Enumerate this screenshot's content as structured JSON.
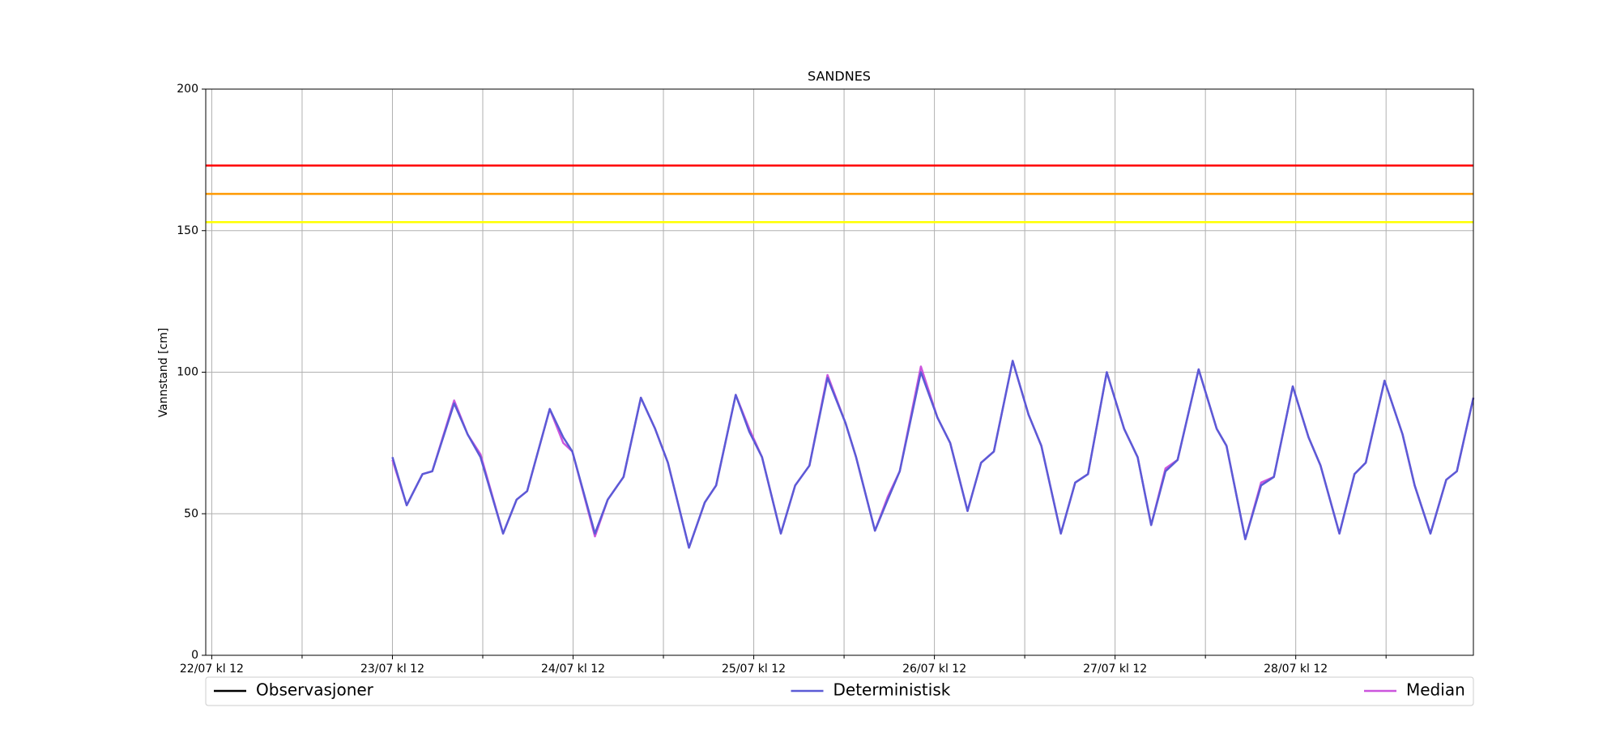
{
  "chart_data": {
    "type": "line",
    "title": "SANDNES",
    "y_label": "Vannstand [cm]",
    "x": [
      24,
      25.9,
      28,
      29.3,
      32.2,
      34,
      35.7,
      38.7,
      40.5,
      41.9,
      44.9,
      46.7,
      47.9,
      50.9,
      52.6,
      54.7,
      57,
      58.9,
      60.6,
      63.4,
      65.5,
      67,
      69.6,
      71.4,
      73.1,
      75.6,
      77.5,
      79.4,
      81.8,
      84.2,
      85.6,
      88.1,
      89.8,
      91.4,
      94.2,
      96.4,
      98.1,
      100.4,
      102.2,
      103.9,
      106.4,
      108.5,
      110.2,
      112.8,
      114.7,
      116.4,
      118.9,
      121.2,
      123,
      124.8,
      126.7,
      128.3,
      131.1,
      133.5,
      134.8,
      137.3,
      139.4,
      141.1,
      143.6,
      145.7,
      147.3,
      149.8,
      151.8,
      153.3,
      155.8,
      158.2,
      159.8,
      161.9,
      164,
      165.4,
      167.6
    ],
    "series": [
      {
        "name": "Observasjoner",
        "color": "#000000",
        "values": [
          null,
          null,
          null,
          null,
          null,
          null,
          null,
          null,
          null,
          null,
          null,
          null,
          null,
          null,
          null,
          null,
          null,
          null,
          null,
          null,
          null,
          null,
          null,
          null,
          null,
          null,
          null,
          null,
          null,
          null,
          null,
          null,
          null,
          null,
          null,
          null,
          null,
          null,
          null,
          null,
          null,
          null,
          null,
          null,
          null,
          null,
          null,
          null,
          null,
          null,
          null,
          null,
          null,
          null,
          null,
          null,
          null,
          null,
          null,
          null,
          null,
          null,
          null,
          null,
          null,
          null,
          null,
          null,
          null,
          null,
          null
        ]
      },
      {
        "name": "Deterministisk",
        "color": "#5b5bd6",
        "values": [
          70,
          53,
          64,
          65,
          89,
          78,
          70,
          43,
          55,
          58,
          87,
          77,
          72,
          43,
          55,
          63,
          91,
          80,
          68,
          38,
          54,
          60,
          92,
          79,
          70,
          43,
          60,
          67,
          98,
          82,
          70,
          44,
          55,
          65,
          100,
          84,
          75,
          51,
          68,
          72,
          104,
          85,
          74,
          43,
          61,
          64,
          100,
          80,
          70,
          46,
          65,
          69,
          101,
          80,
          74,
          41,
          60,
          63,
          95,
          77,
          67,
          43,
          64,
          68,
          97,
          78,
          60,
          43,
          62,
          65,
          91
        ]
      },
      {
        "name": "Median",
        "color": "#cc55dd",
        "values": [
          69,
          53,
          64,
          65,
          90,
          78,
          71,
          43,
          55,
          58,
          87,
          75,
          72,
          42,
          55,
          63,
          91,
          80,
          68,
          38,
          54,
          60,
          92,
          80,
          70,
          43,
          60,
          67,
          99,
          82,
          70,
          44,
          56,
          65,
          102,
          84,
          75,
          51,
          68,
          72,
          104,
          85,
          74,
          43,
          61,
          64,
          100,
          80,
          70,
          46,
          66,
          69,
          101,
          80,
          74,
          41,
          61,
          63,
          95,
          77,
          67,
          43,
          64,
          68,
          97,
          78,
          60,
          43,
          62,
          65,
          91
        ]
      }
    ],
    "thresholds": [
      {
        "value": 173,
        "color": "#ff0000"
      },
      {
        "value": 163,
        "color": "#ff9900"
      },
      {
        "value": 153,
        "color": "#ffff00"
      }
    ],
    "xlim": [
      -0.8,
      167.6
    ],
    "xticks": [
      {
        "value": 0,
        "label": "22/07 kl 12"
      },
      {
        "value": 24,
        "label": "23/07 kl 12"
      },
      {
        "value": 48,
        "label": "24/07 kl 12"
      },
      {
        "value": 72,
        "label": "25/07 kl 12"
      },
      {
        "value": 96,
        "label": "26/07 kl 12"
      },
      {
        "value": 120,
        "label": "27/07 kl 12"
      },
      {
        "value": 144,
        "label": "28/07 kl 12"
      }
    ],
    "xminor": [
      12,
      36,
      60,
      84,
      108,
      132,
      156
    ],
    "ylim": [
      0,
      200
    ],
    "yticks": [
      0,
      50,
      100,
      150,
      200
    ],
    "grid": true
  }
}
